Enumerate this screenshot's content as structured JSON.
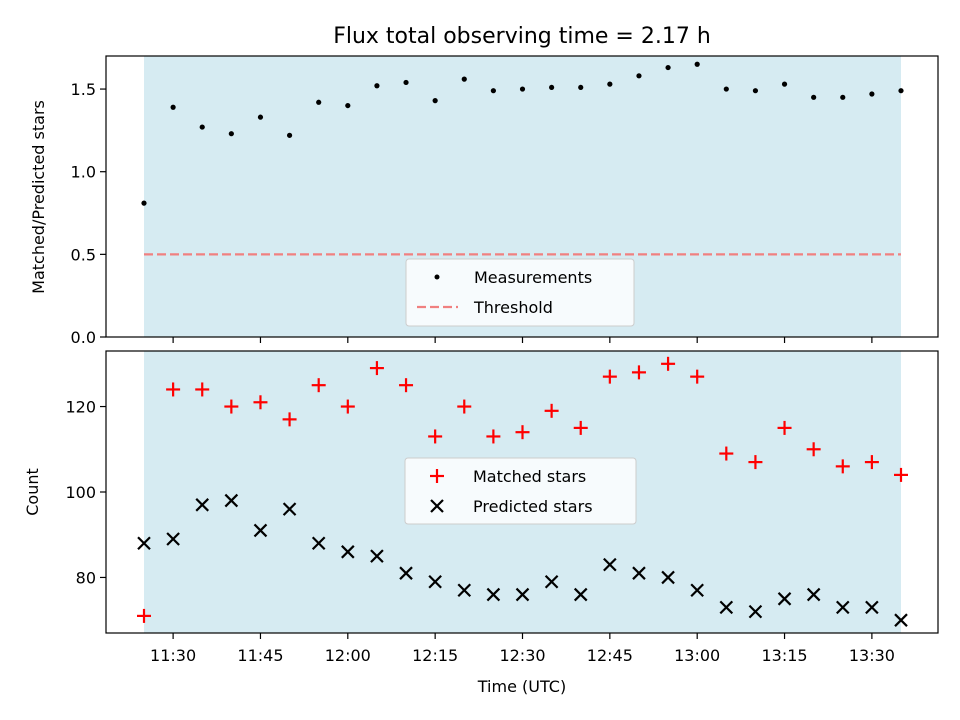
{
  "title": "Flux total observing time = 2.17 h",
  "chart_data": [
    {
      "type": "scatter",
      "panel": "top",
      "ylabel": "Matched/Predicted stars",
      "ylim": [
        0,
        1.7
      ],
      "yticks": [
        0.0,
        0.5,
        1.0,
        1.5
      ],
      "ytick_labels": [
        "0.0",
        "0.5",
        "1.0",
        "1.5"
      ],
      "grid": false,
      "legend_position": "lower center",
      "shaded_span_color": "#add8e6",
      "series": [
        {
          "name": "Measurements",
          "marker": "dot",
          "color": "#000000",
          "x": [
            "11:25",
            "11:30",
            "11:35",
            "11:40",
            "11:45",
            "11:50",
            "11:55",
            "12:00",
            "12:05",
            "12:10",
            "12:15",
            "12:20",
            "12:25",
            "12:30",
            "12:35",
            "12:40",
            "12:45",
            "12:50",
            "12:55",
            "13:00",
            "13:05",
            "13:10",
            "13:15",
            "13:20",
            "13:25",
            "13:30",
            "13:35"
          ],
          "y": [
            0.81,
            1.39,
            1.27,
            1.23,
            1.33,
            1.22,
            1.42,
            1.4,
            1.52,
            1.54,
            1.43,
            1.56,
            1.49,
            1.5,
            1.51,
            1.51,
            1.53,
            1.58,
            1.63,
            1.65,
            1.5,
            1.49,
            1.53,
            1.45,
            1.45,
            1.47,
            1.49
          ]
        },
        {
          "name": "Threshold",
          "style": "dashed",
          "color": "#f08080",
          "y_constant": 0.5
        }
      ]
    },
    {
      "type": "scatter",
      "panel": "bottom",
      "xlabel": "Time (UTC)",
      "ylabel": "Count",
      "ylim": [
        67,
        133
      ],
      "yticks": [
        80,
        100,
        120
      ],
      "ytick_labels": [
        "80",
        "100",
        "120"
      ],
      "xticks": [
        "11:30",
        "11:45",
        "12:00",
        "12:15",
        "12:30",
        "12:45",
        "13:00",
        "13:15",
        "13:30"
      ],
      "grid": false,
      "legend_position": "center",
      "shaded_span_color": "#add8e6",
      "series": [
        {
          "name": "Matched stars",
          "marker": "plus",
          "color": "#ff0000",
          "x": [
            "11:25",
            "11:30",
            "11:35",
            "11:40",
            "11:45",
            "11:50",
            "11:55",
            "12:00",
            "12:05",
            "12:10",
            "12:15",
            "12:20",
            "12:25",
            "12:30",
            "12:35",
            "12:40",
            "12:45",
            "12:50",
            "12:55",
            "13:00",
            "13:05",
            "13:10",
            "13:15",
            "13:20",
            "13:25",
            "13:30",
            "13:35"
          ],
          "y": [
            71,
            124,
            124,
            120,
            121,
            117,
            125,
            120,
            129,
            125,
            113,
            120,
            113,
            114,
            119,
            115,
            127,
            128,
            130,
            127,
            109,
            107,
            115,
            110,
            106,
            107,
            104
          ]
        },
        {
          "name": "Predicted stars",
          "marker": "x",
          "color": "#000000",
          "x": [
            "11:25",
            "11:30",
            "11:35",
            "11:40",
            "11:45",
            "11:50",
            "11:55",
            "12:00",
            "12:05",
            "12:10",
            "12:15",
            "12:20",
            "12:25",
            "12:30",
            "12:35",
            "12:40",
            "12:45",
            "12:50",
            "12:55",
            "13:00",
            "13:05",
            "13:10",
            "13:15",
            "13:20",
            "13:25",
            "13:30",
            "13:35"
          ],
          "y": [
            88,
            89,
            97,
            98,
            91,
            96,
            88,
            86,
            85,
            81,
            79,
            77,
            76,
            76,
            79,
            76,
            83,
            81,
            80,
            77,
            73,
            72,
            75,
            76,
            73,
            73,
            70
          ]
        }
      ]
    }
  ]
}
